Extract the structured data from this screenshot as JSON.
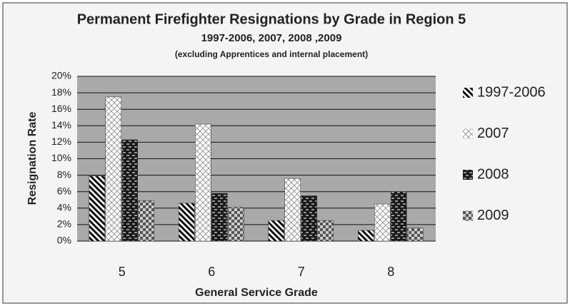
{
  "chart_data": {
    "type": "bar",
    "title": "Permanent Firefighter Resignations by Grade in Region 5",
    "subtitle": "1997-2006, 2007, 2008 ,2009",
    "note": "(excluding Apprentices and internal placement)",
    "x_label": "General Service Grade",
    "y_label": "Resignation Rate",
    "categories": [
      "5",
      "6",
      "7",
      "8"
    ],
    "series": [
      {
        "name": "1997-2006",
        "color": "#111111",
        "values": [
          7.9,
          4.6,
          2.5,
          1.3
        ]
      },
      {
        "name": "2007",
        "color": "#8a8a8a",
        "values": [
          17.5,
          14.2,
          7.6,
          4.5
        ]
      },
      {
        "name": "2008",
        "color": "#1a1a1a",
        "values": [
          12.3,
          5.8,
          5.5,
          6.0
        ]
      },
      {
        "name": "2009",
        "color": "#555555",
        "values": [
          4.9,
          4.1,
          2.5,
          1.6
        ]
      }
    ],
    "ylim": [
      0,
      20
    ],
    "yticks": [
      {
        "value": 0,
        "label": "0%"
      },
      {
        "value": 2,
        "label": "2%"
      },
      {
        "value": 4,
        "label": "4%"
      },
      {
        "value": 6,
        "label": "6%"
      },
      {
        "value": 8,
        "label": "8%"
      },
      {
        "value": 10,
        "label": "10%"
      },
      {
        "value": 12,
        "label": "12%"
      },
      {
        "value": 14,
        "label": "14%"
      },
      {
        "value": 16,
        "label": "16%"
      },
      {
        "value": 18,
        "label": "18%"
      },
      {
        "value": 20,
        "label": "20%"
      }
    ],
    "grid": true,
    "legend": "right"
  }
}
